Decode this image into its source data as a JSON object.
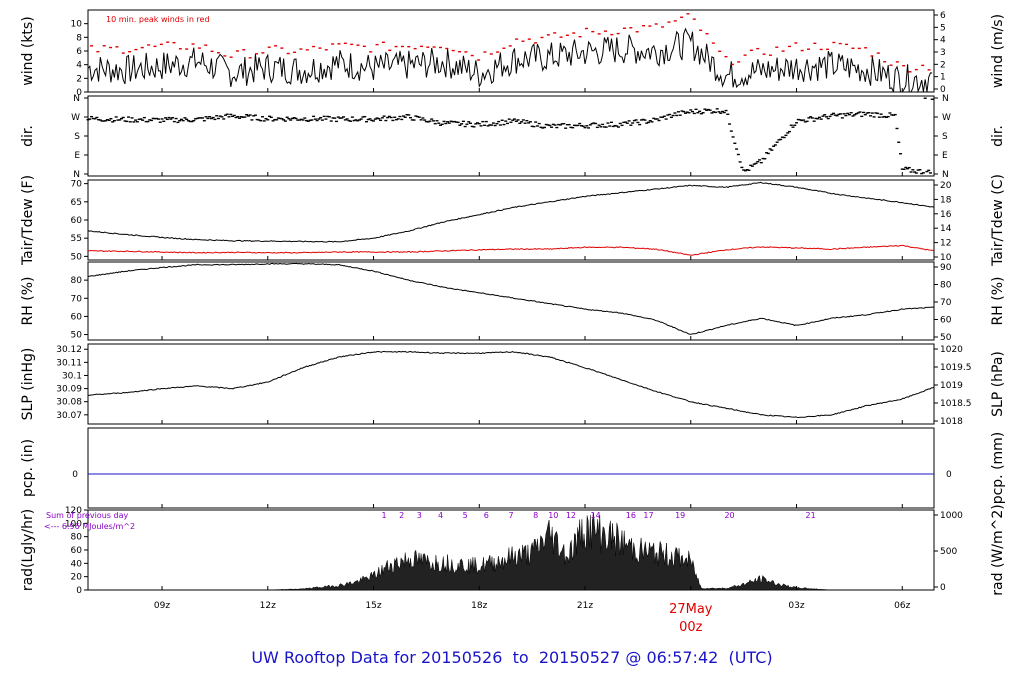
{
  "footer": {
    "prefix": "UW Rooftop Data for",
    "start": "20150526",
    "to_word": "to",
    "end": "20150527",
    "at_word": "@",
    "time": "06:57:42",
    "tz": "(UTC)"
  },
  "colors": {
    "series": "#000000",
    "peak": "#e00000",
    "dew": "#e00000",
    "pcp_line": "#1a14c8",
    "solar_text": "#8a00c8",
    "footer": "#1a14c8",
    "date_text": "#e00000"
  },
  "chart_data": {
    "type": "line",
    "x_axis": {
      "unit": "UTC hours from 00z 26 May",
      "range": [
        6.9,
        30.9
      ],
      "ticks": [
        {
          "value": 9,
          "label": "09z"
        },
        {
          "value": 12,
          "label": "12z"
        },
        {
          "value": 15,
          "label": "15z"
        },
        {
          "value": 18,
          "label": "18z"
        },
        {
          "value": 21,
          "label": "21z"
        },
        {
          "value": 24,
          "label": "00z"
        },
        {
          "value": 27,
          "label": "03z"
        },
        {
          "value": 30,
          "label": "06z"
        }
      ],
      "date_label": "27May",
      "date_value": 24
    },
    "panels": [
      {
        "id": "wind",
        "left_label": "wind (kts)",
        "right_label": "wind (m/s)",
        "left_ylim": [
          0,
          12
        ],
        "left_ticks": [
          0,
          2,
          4,
          6,
          8,
          10
        ],
        "right_ticks": [
          0,
          1,
          2,
          3,
          4,
          5,
          6
        ],
        "note": "10 min. peak winds in red",
        "series": [
          {
            "name": "wind",
            "x": [
              6.9,
              8,
              9,
              10,
              11,
              12,
              13,
              14,
              15,
              16,
              17,
              18,
              19,
              20,
              21,
              22,
              23,
              24,
              25,
              26,
              27,
              28,
              29,
              30,
              30.9
            ],
            "y": [
              3.5,
              3.2,
              3.8,
              4.5,
              2.8,
              3.6,
              3.2,
              4.2,
              3.5,
              3.9,
              4.4,
              2.7,
              4.8,
              5.1,
              5.8,
              6.3,
              6.0,
              7.2,
              2.4,
              3.1,
              3.7,
              3.9,
              3.3,
              1.8,
              1.9
            ]
          },
          {
            "name": "peak",
            "x": [
              6.9,
              8,
              9,
              10,
              11,
              12,
              13,
              14,
              15,
              16,
              17,
              18,
              19,
              20,
              21,
              22,
              23,
              24,
              25,
              26,
              27,
              28,
              29,
              30,
              30.9
            ],
            "y": [
              6.1,
              6.4,
              6.6,
              6.8,
              5.3,
              6.1,
              6.0,
              6.7,
              6.5,
              6.8,
              7.0,
              5.2,
              7.6,
              7.9,
              8.7,
              9.1,
              9.4,
              11.0,
              4.5,
              5.8,
              6.6,
              6.8,
              6.2,
              3.6,
              3.8
            ]
          }
        ]
      },
      {
        "id": "dir",
        "left_label": "dir.",
        "right_label": "dir.",
        "left_ylim": [
          0,
          360
        ],
        "left_tick_labels": [
          "N",
          "E",
          "S",
          "W",
          "N"
        ],
        "series": [
          {
            "name": "direction (deg)",
            "x": [
              6.9,
              8,
              9,
              10,
              11,
              12,
              13,
              14,
              15,
              16,
              17,
              18,
              19,
              20,
              21,
              22,
              23,
              23.5,
              24,
              24.5,
              25,
              25.5,
              26,
              27,
              28,
              29,
              29.8,
              30,
              30.9
            ],
            "y": [
              262,
              258,
              255,
              258,
              275,
              262,
              262,
              260,
              260,
              270,
              240,
              235,
              250,
              225,
              230,
              235,
              255,
              280,
              295,
              300,
              300,
              10,
              60,
              250,
              275,
              285,
              275,
              22,
              5
            ]
          }
        ]
      },
      {
        "id": "temp",
        "left_label": "Tair/Tdew (F)",
        "right_label": "Tair/Tdew (C)",
        "left_ylim": [
          49,
          71
        ],
        "left_ticks": [
          50,
          55,
          60,
          65,
          70
        ],
        "right_ticks": [
          10,
          12,
          14,
          16,
          18,
          20
        ],
        "series": [
          {
            "name": "Tair",
            "x": [
              6.9,
              8,
              9,
              10,
              11,
              12,
              13,
              14,
              15,
              16,
              17,
              18,
              19,
              20,
              21,
              22,
              23,
              24,
              25,
              26,
              27,
              28,
              29,
              30,
              30.9
            ],
            "y": [
              57.0,
              56.0,
              55.2,
              54.6,
              54.3,
              54.2,
              54.1,
              54.0,
              55.0,
              57.0,
              59.5,
              61.5,
              63.5,
              65.0,
              66.5,
              67.5,
              68.5,
              69.5,
              69.0,
              70.3,
              69.0,
              67.3,
              66.0,
              64.8,
              63.5
            ]
          },
          {
            "name": "Tdew",
            "x": [
              6.9,
              8,
              9,
              10,
              11,
              12,
              13,
              14,
              15,
              16,
              17,
              18,
              19,
              20,
              21,
              22,
              23,
              24,
              25,
              26,
              27,
              28,
              29,
              30,
              30.9
            ],
            "y": [
              51.5,
              51.4,
              51.2,
              51.0,
              51.1,
              51.0,
              51.0,
              51.2,
              51.2,
              51.2,
              51.5,
              51.8,
              52.0,
              52.0,
              52.5,
              52.5,
              52.0,
              50.3,
              51.8,
              52.6,
              52.3,
              52.0,
              52.5,
              53.0,
              51.5
            ]
          }
        ]
      },
      {
        "id": "rh",
        "left_label": "RH (%)",
        "right_label": "RH (%)",
        "left_ylim": [
          47,
          90
        ],
        "left_ticks": [
          50,
          60,
          70,
          80
        ],
        "right_ticks": [
          50,
          60,
          70,
          80,
          90
        ],
        "series": [
          {
            "name": "RH",
            "x": [
              6.9,
              8,
              9,
              10,
              11,
              12,
              13,
              14,
              15,
              16,
              17,
              18,
              19,
              20,
              21,
              22,
              23,
              24,
              25,
              26,
              27,
              28,
              29,
              30,
              30.9
            ],
            "y": [
              82,
              85,
              87,
              88.5,
              88.5,
              89,
              89,
              88.5,
              85,
              80,
              76,
              73,
              70,
              67,
              64,
              62,
              58,
              50,
              55,
              59,
              55,
              59,
              61,
              64,
              65
            ]
          }
        ]
      },
      {
        "id": "slp",
        "left_label": "SLP (inHg)",
        "right_label": "SLP (hPa)",
        "left_ylim": [
          30.063,
          30.124
        ],
        "left_ticks": [
          30.07,
          30.08,
          30.09,
          30.1,
          30.11,
          30.12
        ],
        "right_ticks": [
          "1018",
          "1018.5",
          "1019",
          "1019.5",
          "1020"
        ],
        "series": [
          {
            "name": "SLP",
            "x": [
              6.9,
              8,
              9,
              10,
              11,
              12,
              13,
              14,
              15,
              16,
              17,
              18,
              19,
              20,
              21,
              22,
              23,
              24,
              25,
              26,
              27,
              28,
              29,
              30,
              30.9
            ],
            "y": [
              30.085,
              30.087,
              30.09,
              30.092,
              30.09,
              30.095,
              30.106,
              30.114,
              30.118,
              30.118,
              30.117,
              30.117,
              30.118,
              30.114,
              30.106,
              30.097,
              30.088,
              30.08,
              30.075,
              30.07,
              30.068,
              30.07,
              30.077,
              30.082,
              30.091
            ]
          }
        ]
      },
      {
        "id": "pcp",
        "left_label": "pcp. (in)",
        "right_label": "pcp. (mm)",
        "left_value_label": "0",
        "right_value_label": "0",
        "series": [
          {
            "name": "pcp",
            "x": [
              6.9,
              30.9
            ],
            "y": [
              0,
              0
            ]
          }
        ]
      },
      {
        "id": "rad",
        "left_label": "rad(Lgly/hr)",
        "right_label": "rad (W/m^2)",
        "left_ylim": [
          0,
          120
        ],
        "left_ticks": [
          0,
          20,
          40,
          60,
          80,
          100,
          120
        ],
        "right_ticks": [
          "0",
          "500",
          "1000"
        ],
        "sum_label": "Sum of previous day",
        "sum_value": "<--- 6.96 MJoules/m^2",
        "hour_markers": [
          "1",
          "2",
          "3",
          "4",
          "5",
          "6",
          "7",
          "8",
          "10",
          "12",
          "14",
          "16",
          "17",
          "19",
          "20",
          "21"
        ],
        "series": [
          {
            "name": "radiation",
            "x": [
              12,
              13,
              14,
              14.5,
              15,
              15.5,
              16,
              16.5,
              17,
              17.5,
              18,
              18.5,
              19,
              19.5,
              20,
              20.5,
              21,
              21.5,
              22,
              22.5,
              23,
              23.5,
              24,
              24.3,
              25,
              25.5,
              26,
              26.5,
              27,
              28
            ],
            "y": [
              0,
              2,
              8,
              14,
              25,
              45,
              55,
              50,
              48,
              45,
              42,
              50,
              60,
              65,
              100,
              60,
              110,
              100,
              85,
              70,
              65,
              60,
              50,
              3,
              3,
              10,
              20,
              10,
              4,
              0
            ]
          }
        ]
      }
    ]
  }
}
